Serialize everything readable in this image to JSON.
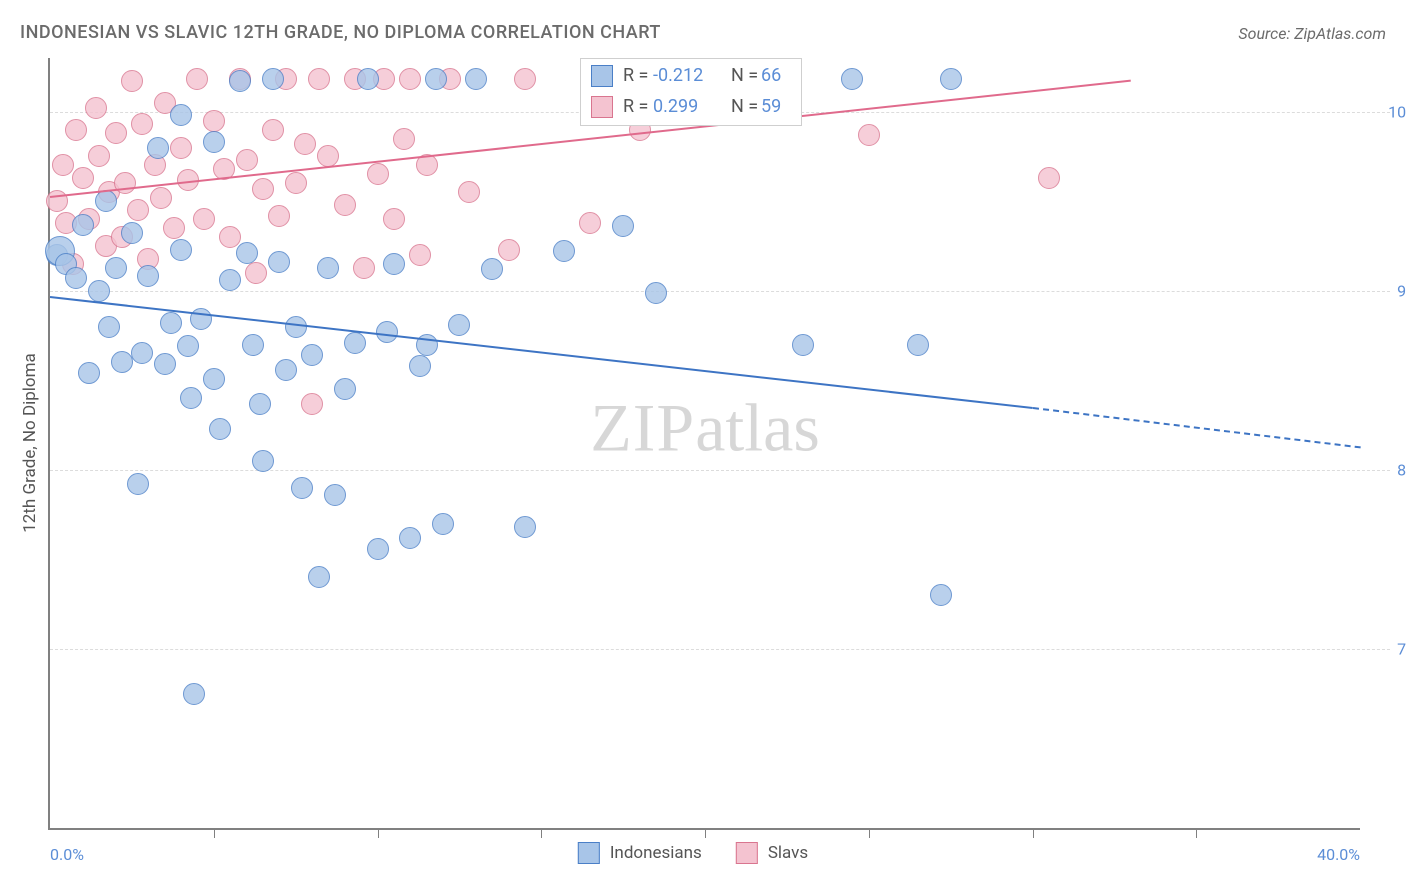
{
  "title": "INDONESIAN VS SLAVIC 12TH GRADE, NO DIPLOMA CORRELATION CHART",
  "source": "Source: ZipAtlas.com",
  "ylabel": "12th Grade, No Diploma",
  "watermark_zip": "ZIP",
  "watermark_atlas": "atlas",
  "chart": {
    "type": "scatter",
    "background_color": "#ffffff",
    "grid_color": "#dcdcdc",
    "axis_color": "#808080",
    "tick_label_color": "#5b8dd6",
    "label_color": "#555555",
    "title_color": "#6b6b6b",
    "title_fontsize": 18,
    "tick_fontsize": 16,
    "label_fontsize": 17,
    "xlim": [
      0,
      40
    ],
    "ylim": [
      60,
      103
    ],
    "xticks_minor": [
      5,
      10,
      15,
      20,
      25,
      30,
      35
    ],
    "xticks_labeled": [
      0,
      40
    ],
    "yticks": [
      70,
      80,
      90,
      100
    ],
    "xtick_format": "%.1f%%",
    "ytick_format": "%.1f%%",
    "marker_radius": 10,
    "marker_border_width": 1.5,
    "marker_fill_opacity": 0.35,
    "series": [
      {
        "name": "Indonesians",
        "color_border": "#4a7fc7",
        "color_fill": "#a8c5e8",
        "R": "-0.212",
        "N": "66",
        "trend": {
          "x1": 0,
          "y1": 89.7,
          "x2": 30,
          "y2": 83.5,
          "dashed_after_x": 30,
          "x3": 40,
          "y3": 81.3,
          "color": "#3d74c4",
          "width": 2
        },
        "points": [
          [
            0.2,
            92.0
          ],
          [
            0.3,
            92.2,
            14
          ],
          [
            0.5,
            91.5
          ],
          [
            0.8,
            90.7
          ],
          [
            1.0,
            93.7
          ],
          [
            1.2,
            85.4
          ],
          [
            1.5,
            90.0
          ],
          [
            1.7,
            95.0
          ],
          [
            1.8,
            88.0
          ],
          [
            2.0,
            91.3
          ],
          [
            2.2,
            86.0
          ],
          [
            2.5,
            93.2
          ],
          [
            2.7,
            79.2
          ],
          [
            2.8,
            86.5
          ],
          [
            3.0,
            90.8
          ],
          [
            3.3,
            98.0
          ],
          [
            3.5,
            85.9
          ],
          [
            3.7,
            88.2
          ],
          [
            4.0,
            92.3
          ],
          [
            4.0,
            99.8
          ],
          [
            4.2,
            86.9
          ],
          [
            4.3,
            84.0
          ],
          [
            4.4,
            67.5
          ],
          [
            4.6,
            88.4
          ],
          [
            5.0,
            98.3
          ],
          [
            5.0,
            85.1
          ],
          [
            5.2,
            82.3
          ],
          [
            5.5,
            90.6
          ],
          [
            5.8,
            101.7
          ],
          [
            6.0,
            92.1
          ],
          [
            6.2,
            87.0
          ],
          [
            6.4,
            83.7
          ],
          [
            6.5,
            80.5
          ],
          [
            6.8,
            101.8
          ],
          [
            7.0,
            91.6
          ],
          [
            7.2,
            85.6
          ],
          [
            7.5,
            88.0
          ],
          [
            7.7,
            79.0
          ],
          [
            8.0,
            86.4
          ],
          [
            8.2,
            74.0
          ],
          [
            8.5,
            91.3
          ],
          [
            8.7,
            78.6
          ],
          [
            9.0,
            84.5
          ],
          [
            9.3,
            87.1
          ],
          [
            9.7,
            101.8
          ],
          [
            10.0,
            75.6
          ],
          [
            10.3,
            87.7
          ],
          [
            10.5,
            91.5
          ],
          [
            11.0,
            76.2
          ],
          [
            11.3,
            85.8
          ],
          [
            11.5,
            87.0
          ],
          [
            11.8,
            101.8
          ],
          [
            12.0,
            77.0
          ],
          [
            12.5,
            88.1
          ],
          [
            13.0,
            101.8
          ],
          [
            13.5,
            91.2
          ],
          [
            14.5,
            76.8
          ],
          [
            15.7,
            92.2
          ],
          [
            17.5,
            93.6
          ],
          [
            18.5,
            89.9
          ],
          [
            19.0,
            101.7
          ],
          [
            23.0,
            87.0
          ],
          [
            24.5,
            101.8
          ],
          [
            26.5,
            87.0
          ],
          [
            27.2,
            73.0
          ],
          [
            27.5,
            101.8
          ]
        ]
      },
      {
        "name": "Slavs",
        "color_border": "#d9758f",
        "color_fill": "#f4c3d0",
        "R": "0.299",
        "N": "59",
        "trend": {
          "x1": 0,
          "y1": 95.3,
          "x2": 33,
          "y2": 101.8,
          "dashed_after_x": null,
          "color": "#e06a8c",
          "width": 2
        },
        "points": [
          [
            0.2,
            95.0
          ],
          [
            0.4,
            97.0
          ],
          [
            0.5,
            93.8
          ],
          [
            0.7,
            91.5
          ],
          [
            0.8,
            99.0
          ],
          [
            1.0,
            96.3
          ],
          [
            1.2,
            94.0
          ],
          [
            1.4,
            100.2
          ],
          [
            1.5,
            97.5
          ],
          [
            1.7,
            92.5
          ],
          [
            1.8,
            95.5
          ],
          [
            2.0,
            98.8
          ],
          [
            2.2,
            93.0
          ],
          [
            2.3,
            96.0
          ],
          [
            2.5,
            101.7
          ],
          [
            2.7,
            94.5
          ],
          [
            2.8,
            99.3
          ],
          [
            3.0,
            91.8
          ],
          [
            3.2,
            97.0
          ],
          [
            3.4,
            95.2
          ],
          [
            3.5,
            100.5
          ],
          [
            3.8,
            93.5
          ],
          [
            4.0,
            98.0
          ],
          [
            4.2,
            96.2
          ],
          [
            4.5,
            101.8
          ],
          [
            4.7,
            94.0
          ],
          [
            5.0,
            99.5
          ],
          [
            5.3,
            96.8
          ],
          [
            5.5,
            93.0
          ],
          [
            5.8,
            101.8
          ],
          [
            6.0,
            97.3
          ],
          [
            6.3,
            91.0
          ],
          [
            6.5,
            95.7
          ],
          [
            6.8,
            99.0
          ],
          [
            7.0,
            94.2
          ],
          [
            7.2,
            101.8
          ],
          [
            7.5,
            96.0
          ],
          [
            7.8,
            98.2
          ],
          [
            8.0,
            83.7
          ],
          [
            8.2,
            101.8
          ],
          [
            8.5,
            97.5
          ],
          [
            9.0,
            94.8
          ],
          [
            9.3,
            101.8
          ],
          [
            9.6,
            91.3
          ],
          [
            10.0,
            96.5
          ],
          [
            10.2,
            101.8
          ],
          [
            10.5,
            94.0
          ],
          [
            10.8,
            98.5
          ],
          [
            11.0,
            101.8
          ],
          [
            11.3,
            92.0
          ],
          [
            11.5,
            97.0
          ],
          [
            12.2,
            101.8
          ],
          [
            12.8,
            95.5
          ],
          [
            14.0,
            92.3
          ],
          [
            14.5,
            101.8
          ],
          [
            16.5,
            93.8
          ],
          [
            18.0,
            99.0
          ],
          [
            25.0,
            98.7
          ],
          [
            30.5,
            96.3
          ]
        ]
      }
    ],
    "top_legend": {
      "border_color": "#cfcfcf",
      "fontsize": 18,
      "r_label": "R =",
      "n_label": "N ="
    },
    "bottom_legend": {
      "fontsize": 17
    }
  }
}
